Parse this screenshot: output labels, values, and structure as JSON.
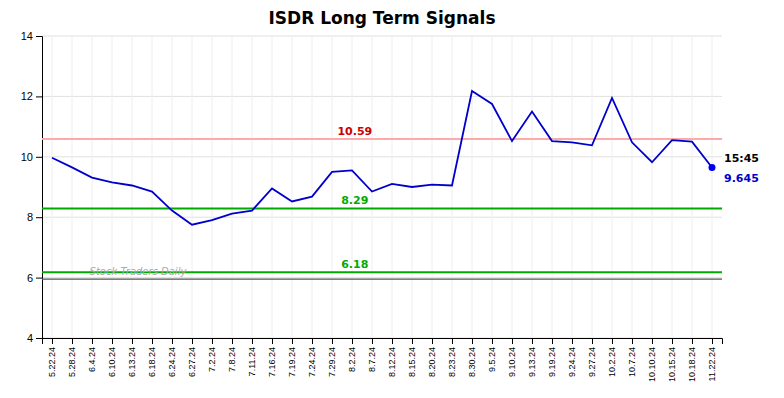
{
  "chart_data": {
    "type": "line",
    "title": "ISDR Long Term Signals",
    "categories": [
      "5.22.24",
      "5.28.24",
      "6.4.24",
      "6.10.24",
      "6.13.24",
      "6.18.24",
      "6.24.24",
      "6.27.24",
      "7.2.24",
      "7.8.24",
      "7.11.24",
      "7.16.24",
      "7.19.24",
      "7.24.24",
      "7.29.24",
      "8.2.24",
      "8.7.24",
      "8.12.24",
      "8.15.24",
      "8.20.24",
      "8.23.24",
      "8.30.24",
      "9.5.24",
      "9.10.24",
      "9.13.24",
      "9.19.24",
      "9.24.24",
      "9.27.24",
      "10.2.24",
      "10.7.24",
      "10.10.24",
      "10.15.24",
      "10.18.24",
      "11.22.24"
    ],
    "values": [
      9.97,
      9.65,
      9.31,
      9.15,
      9.05,
      8.85,
      8.22,
      7.75,
      7.9,
      8.12,
      8.22,
      8.95,
      8.52,
      8.68,
      9.5,
      9.55,
      8.85,
      9.1,
      9.0,
      9.08,
      9.05,
      12.18,
      11.75,
      10.52,
      11.5,
      10.52,
      10.48,
      10.38,
      11.95,
      10.48,
      9.82,
      10.55,
      10.5,
      9.645
    ],
    "color": "#0000cc",
    "hlines": [
      {
        "value": 10.59,
        "label": "10.59",
        "color": "#ffaaaa",
        "label_color": "#cc0000"
      },
      {
        "value": 8.29,
        "label": "8.29",
        "color": "#00aa00",
        "label_color": "#00aa00"
      },
      {
        "value": 6.18,
        "label": "6.18",
        "color": "#00aa00",
        "label_color": "#00aa00"
      },
      {
        "value": 5.95,
        "color": "#555555"
      }
    ],
    "watermark": "Stock Traders Daily",
    "last_point": {
      "label": "15:45",
      "value_label": "9.645",
      "color": "#0000ee"
    },
    "ylim": [
      4,
      14
    ],
    "yticks": [
      4,
      6,
      8,
      10,
      12,
      14
    ],
    "grid": true
  }
}
